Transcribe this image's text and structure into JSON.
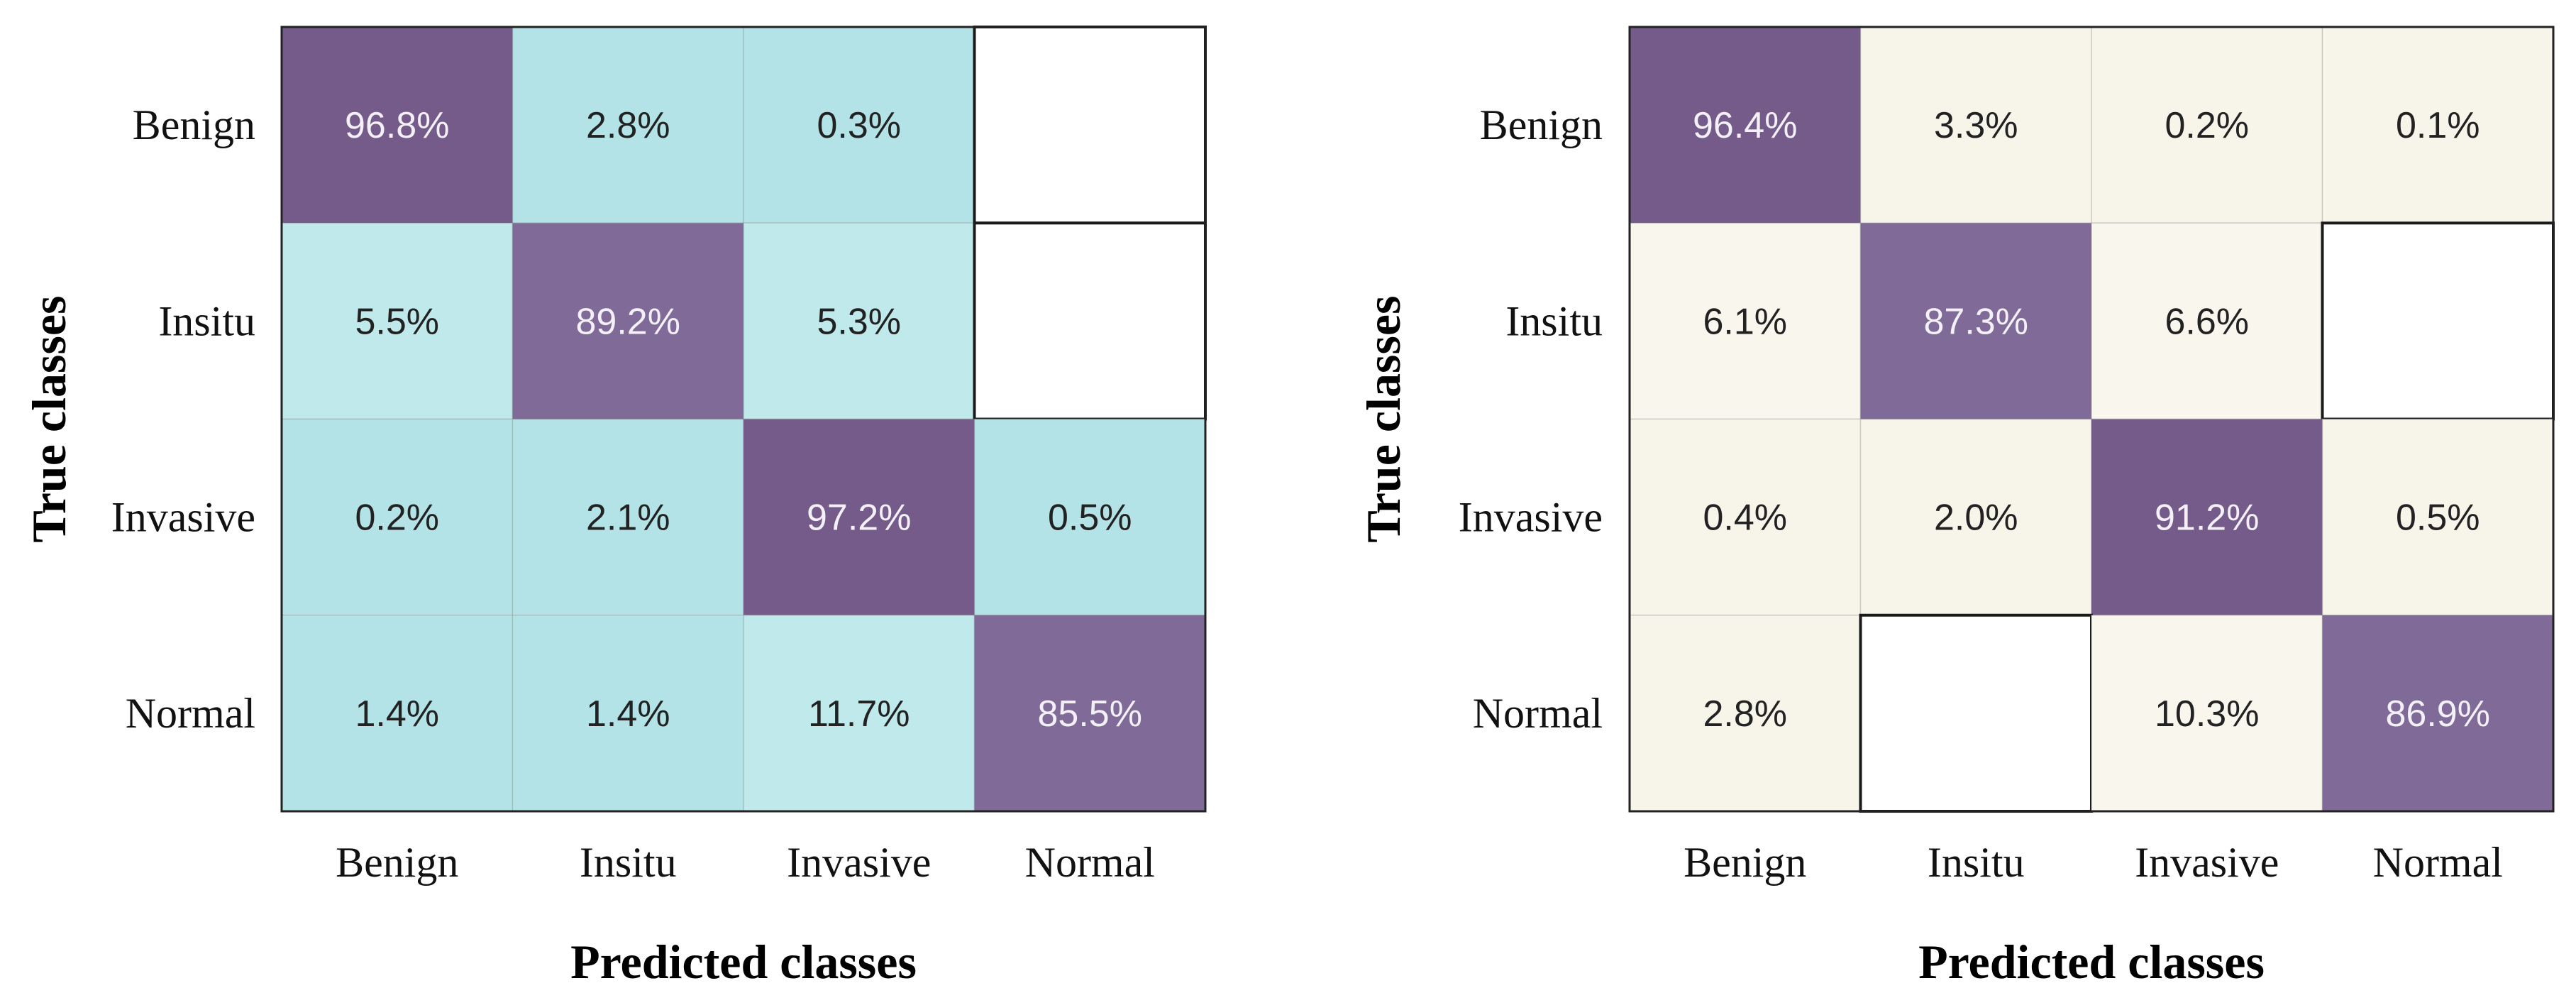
{
  "chart_data": [
    {
      "type": "heatmap",
      "title": "",
      "xlabel": "Predicted classes",
      "ylabel": "True classes",
      "row_labels": [
        "Benign",
        "Insitu",
        "Invasive",
        "Normal"
      ],
      "col_labels": [
        "Benign",
        "Insitu",
        "Invasive",
        "Normal"
      ],
      "values": [
        [
          96.8,
          2.8,
          0.3,
          null
        ],
        [
          5.5,
          89.2,
          5.3,
          null
        ],
        [
          0.2,
          2.1,
          97.2,
          0.5
        ],
        [
          1.4,
          1.4,
          11.7,
          85.5
        ]
      ],
      "labels": [
        [
          "96.8%",
          "2.8%",
          "0.3%",
          ""
        ],
        [
          "5.5%",
          "89.2%",
          "5.3%",
          ""
        ],
        [
          "0.2%",
          "2.1%",
          "97.2%",
          "0.5%"
        ],
        [
          "1.4%",
          "1.4%",
          "11.7%",
          "85.5%"
        ]
      ],
      "colors": {
        "high": "#755b8a",
        "high_alt": "#7f6a98",
        "low": "#b3e3e6",
        "low_alt": "#c0e9ec",
        "empty": "#ffffff",
        "text_dark": "#222222",
        "text_light": "#f4f0f7"
      }
    },
    {
      "type": "heatmap",
      "title": "",
      "xlabel": "Predicted classes",
      "ylabel": "True classes",
      "row_labels": [
        "Benign",
        "Insitu",
        "Invasive",
        "Normal"
      ],
      "col_labels": [
        "Benign",
        "Insitu",
        "Invasive",
        "Normal"
      ],
      "values": [
        [
          96.4,
          3.3,
          0.2,
          0.1
        ],
        [
          6.1,
          87.3,
          6.6,
          null
        ],
        [
          0.4,
          2.0,
          91.2,
          0.5
        ],
        [
          2.8,
          null,
          10.3,
          86.9
        ]
      ],
      "labels": [
        [
          "96.4%",
          "3.3%",
          "0.2%",
          "0.1%"
        ],
        [
          "6.1%",
          "87.3%",
          "6.6%",
          ""
        ],
        [
          "0.4%",
          "2.0%",
          "91.2%",
          "0.5%"
        ],
        [
          "2.8%",
          "",
          "10.3%",
          "86.9%"
        ]
      ],
      "colors": {
        "high": "#755b8a",
        "high_alt": "#7f6a98",
        "low": "#f7f4ea",
        "low_alt": "#f9f6ee",
        "empty": "#ffffff",
        "text_dark": "#222222",
        "text_light": "#f4f0f7"
      }
    }
  ]
}
